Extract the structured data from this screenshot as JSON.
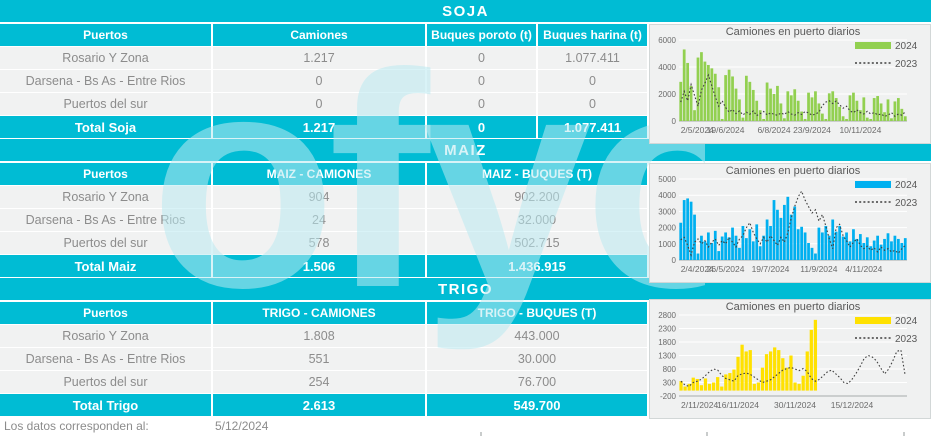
{
  "meta": {
    "footer_label": "Los datos corresponden al:",
    "footer_date": "5/12/2024",
    "watermark": "ofyo"
  },
  "colors": {
    "teal": "#00bcd4",
    "row_bg": "#f1f2f2",
    "row_text": "#8c8c8c",
    "chart_bg": "#f0f1f1",
    "soja_green": "#92d050",
    "maiz_blue": "#00b0f0",
    "trigo_yellow": "#ffe100",
    "line_2023": "#3f3f3f"
  },
  "sections": [
    {
      "id": "soja",
      "title": "SOJA",
      "table": {
        "columns": [
          "Puertos",
          "Camiones",
          "Buques poroto (t)",
          "Buques harina (t)"
        ],
        "rows": [
          [
            "Rosario Y Zona",
            "1.217",
            "0",
            "1.077.411"
          ],
          [
            "Darsena - Bs As - Entre Rios",
            "0",
            "0",
            "0"
          ],
          [
            "Puertos del sur",
            "0",
            "0",
            "0"
          ]
        ],
        "total": [
          "Total Soja",
          "1.217",
          "0",
          "1.077.411"
        ]
      }
    },
    {
      "id": "maiz",
      "title": "MAIZ",
      "table": {
        "columns": [
          "Puertos",
          "MAIZ - CAMIONES",
          "MAIZ - BUQUES (T)"
        ],
        "rows": [
          [
            "Rosario Y Zona",
            "904",
            "902.200"
          ],
          [
            "Darsena - Bs As - Entre Rios",
            "24",
            "32.000"
          ],
          [
            "Puertos del sur",
            "578",
            "502.715"
          ]
        ],
        "total": [
          "Total Maiz",
          "1.506",
          "1.436.915"
        ]
      }
    },
    {
      "id": "trigo",
      "title": "TRIGO",
      "table": {
        "columns": [
          "Puertos",
          "TRIGO - CAMIONES",
          "TRIGO - BUQUES (T)"
        ],
        "rows": [
          [
            "Rosario Y Zona",
            "1.808",
            "443.000"
          ],
          [
            "Darsena - Bs As - Entre Rios",
            "551",
            "30.000"
          ],
          [
            "Puertos del sur",
            "254",
            "76.700"
          ]
        ],
        "total": [
          "Total Trigo",
          "2.613",
          "549.700"
        ]
      }
    }
  ],
  "chart_data": [
    {
      "type": "bar",
      "title": "Camiones en puerto diarios",
      "bar_color": "#92d050",
      "line_color": "#3f3f3f",
      "ylim": [
        0,
        6000
      ],
      "y_ticks": [
        0,
        2000,
        4000,
        6000
      ],
      "x_tick_labels": [
        "2/5/2024",
        "19/6/2024",
        "6/8/2024",
        "23/9/2024",
        "10/11/2024"
      ],
      "x_tick_positions": [
        0,
        13,
        27,
        38,
        52
      ],
      "legend_position": "top-right",
      "grid": true,
      "series": [
        {
          "name": "2024",
          "type": "bar",
          "values": [
            2900,
            5300,
            4300,
            2600,
            800,
            4700,
            5100,
            4400,
            4150,
            3900,
            3500,
            2500,
            150,
            3400,
            3800,
            3300,
            2400,
            1600,
            250,
            3350,
            2900,
            2300,
            1500,
            800,
            150,
            2850,
            2400,
            2000,
            2600,
            1300,
            200,
            2200,
            1900,
            2350,
            1500,
            700,
            150,
            2100,
            1750,
            2200,
            1300,
            550,
            150,
            2050,
            2200,
            1700,
            1050,
            350,
            150,
            1900,
            2100,
            1500,
            800,
            1750,
            250,
            150,
            1700,
            1850,
            1300,
            650,
            1600,
            200,
            1450,
            1700,
            900,
            350
          ]
        },
        {
          "name": "2023",
          "type": "dotted-line",
          "values": [
            1400,
            2200,
            1500,
            2700,
            1900,
            1100,
            2300,
            2800,
            3400,
            2600,
            1800,
            1100,
            1500,
            1000,
            650,
            850,
            550,
            750,
            450,
            650,
            500,
            750,
            400,
            550,
            700,
            450,
            600,
            500,
            420,
            600,
            480,
            700,
            520,
            430,
            620,
            480,
            700,
            600,
            420,
            520,
            650,
            1150,
            1400,
            1500,
            1300,
            1480,
            1200,
            950,
            1100,
            750,
            620,
            820,
            620,
            520,
            720,
            520,
            620,
            450,
            520,
            350,
            420,
            620,
            350,
            520,
            430,
            680
          ]
        }
      ]
    },
    {
      "type": "bar",
      "title": "Camiones en puerto diarios",
      "bar_color": "#00b0f0",
      "line_color": "#3f3f3f",
      "ylim": [
        0,
        5000
      ],
      "y_ticks": [
        0,
        1000,
        2000,
        3000,
        4000,
        5000
      ],
      "x_tick_labels": [
        "2/4/2024",
        "26/5/2024",
        "19/7/2024",
        "11/9/2024",
        "4/11/2024"
      ],
      "x_tick_positions": [
        0,
        13,
        26,
        40,
        53
      ],
      "legend_position": "top-right",
      "grid": true,
      "series": [
        {
          "name": "2024",
          "type": "bar",
          "values": [
            2300,
            3700,
            3800,
            3600,
            2800,
            400,
            1500,
            1150,
            1700,
            1050,
            1800,
            550,
            1450,
            1700,
            1400,
            2000,
            1500,
            750,
            2100,
            1350,
            1900,
            1150,
            2200,
            850,
            1500,
            2500,
            2100,
            3700,
            3100,
            2600,
            3400,
            3900,
            2800,
            3300,
            1900,
            2050,
            1700,
            1050,
            750,
            400,
            2000,
            1700,
            2100,
            1500,
            2500,
            1750,
            2100,
            1450,
            1700,
            1150,
            1900,
            1300,
            1600,
            1050,
            1400,
            850,
            1200,
            1500,
            950,
            1300,
            1650,
            1150,
            1500,
            1300,
            1050,
            1350
          ]
        },
        {
          "name": "2023",
          "type": "dotted-line",
          "values": [
            1250,
            1400,
            900,
            300,
            1100,
            1300,
            1000,
            1200,
            800,
            1100,
            1300,
            900,
            1200,
            1000,
            1400,
            1100,
            800,
            1300,
            1500,
            2000,
            2300,
            1700,
            1300,
            1000,
            1400,
            1100,
            1500,
            1200,
            900,
            1400,
            1100,
            1700,
            2600,
            3300,
            3900,
            4250,
            3700,
            3300,
            2900,
            3100,
            2400,
            2800,
            2100,
            1300,
            700,
            2000,
            2200,
            1500,
            1200,
            800,
            1100,
            1300,
            900,
            700,
            850,
            600,
            750,
            500,
            800,
            600,
            700,
            500,
            600,
            420,
            700,
            900
          ]
        }
      ]
    },
    {
      "type": "bar",
      "title": "Camiones en puerto diarios",
      "bar_color": "#ffe100",
      "line_color": "#3f3f3f",
      "ylim": [
        -200,
        2800
      ],
      "y_ticks": [
        -200,
        300,
        800,
        1300,
        1800,
        2300,
        2800
      ],
      "x_tick_labels": [
        "2/11/2024",
        "16/11/2024",
        "30/11/2024",
        "15/12/2024"
      ],
      "x_tick_positions": [
        0,
        14,
        28,
        42
      ],
      "legend_position": "top-right",
      "grid": true,
      "series": [
        {
          "name": "2024",
          "type": "bar",
          "values": [
            350,
            150,
            250,
            480,
            430,
            200,
            450,
            250,
            300,
            500,
            150,
            600,
            650,
            780,
            1250,
            1700,
            1450,
            1500,
            250,
            300,
            850,
            1350,
            1450,
            1600,
            1500,
            1200,
            850,
            1300,
            300,
            250,
            550,
            1450,
            2250,
            2620,
            null,
            null,
            null,
            null,
            null,
            null,
            null,
            null,
            null,
            null,
            null,
            null,
            null,
            null,
            null,
            null,
            null,
            null,
            null,
            null,
            null,
            null
          ]
        },
        {
          "name": "2023",
          "type": "dotted-line",
          "values": [
            350,
            200,
            160,
            300,
            350,
            420,
            560,
            700,
            800,
            760,
            560,
            450,
            400,
            350,
            560,
            620,
            650,
            600,
            500,
            400,
            300,
            350,
            400,
            520,
            640,
            760,
            820,
            860,
            800,
            740,
            820,
            700,
            450,
            350,
            420,
            560,
            700,
            760,
            620,
            480,
            300,
            260,
            420,
            640,
            900,
            1200,
            1300,
            1240,
            1100,
            850,
            620,
            800,
            1100,
            1450,
            1500,
            600
          ]
        }
      ]
    }
  ]
}
